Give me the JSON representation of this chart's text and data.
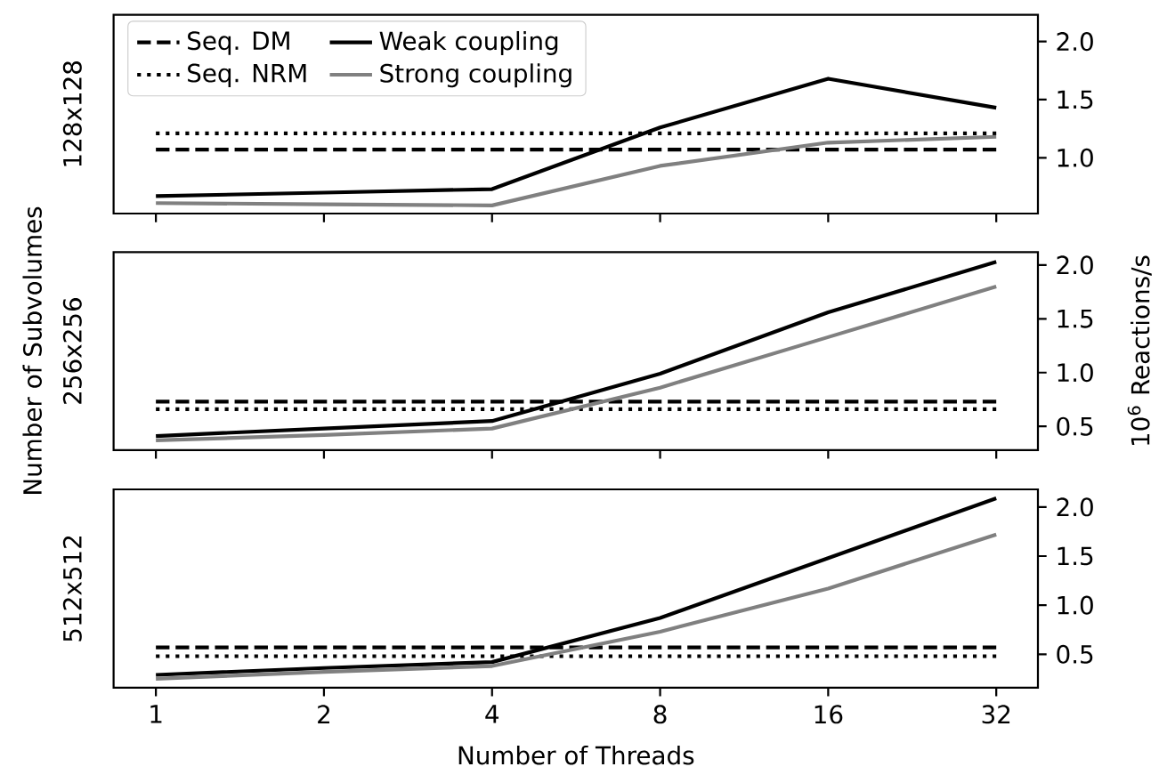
{
  "chart_data": [
    {
      "type": "line",
      "x": [
        1,
        2,
        4,
        8,
        16,
        32
      ],
      "log": "x",
      "xlim": [
        0.84,
        38
      ],
      "xticks": [
        1,
        2,
        4,
        8,
        16,
        32
      ],
      "ylim": [
        0.52,
        2.23
      ],
      "yticks": [
        {
          "value": 1.0,
          "label": "1.0"
        },
        {
          "value": 1.5,
          "label": "1.5"
        },
        {
          "value": 2.0,
          "label": "2.0"
        }
      ],
      "ylabel": "128x128",
      "tick_labels": "y",
      "legend": "top left",
      "series": [
        {
          "name": "Seq. DM",
          "color": "#000000",
          "line_style": "dashed",
          "values": [
            1.07,
            1.07,
            1.07,
            1.07,
            1.07,
            1.07
          ]
        },
        {
          "name": "Seq. NRM",
          "color": "#000000",
          "line_style": "dotted",
          "values": [
            1.21,
            1.21,
            1.21,
            1.21,
            1.21,
            1.21
          ]
        },
        {
          "name": "Weak coupling",
          "color": "#000000",
          "line_style": "solid",
          "values": [
            0.67,
            0.7,
            0.73,
            1.26,
            1.68,
            1.43
          ]
        },
        {
          "name": "Strong coupling",
          "color": "#808080",
          "line_style": "solid",
          "values": [
            0.61,
            0.6,
            0.59,
            0.93,
            1.13,
            1.18
          ]
        }
      ]
    },
    {
      "type": "line",
      "x": [
        1,
        2,
        4,
        8,
        16,
        32
      ],
      "log": "x",
      "xlim": [
        0.84,
        38
      ],
      "xticks": [
        1,
        2,
        4,
        8,
        16,
        32
      ],
      "ylim": [
        0.28,
        2.12
      ],
      "yticks": [
        {
          "value": 0.5,
          "label": "0.5"
        },
        {
          "value": 1.0,
          "label": "1.0"
        },
        {
          "value": 1.5,
          "label": "1.5"
        },
        {
          "value": 2.0,
          "label": "2.0"
        }
      ],
      "ylabel": "256x256",
      "y2label": "10$^{6}$ Reactions/s",
      "annotations": [
        "Number of Subvolumes"
      ],
      "tick_labels": "y",
      "series": [
        {
          "color": "#000000",
          "line_style": "dashed",
          "values": [
            0.73,
            0.73,
            0.73,
            0.73,
            0.73,
            0.73
          ]
        },
        {
          "color": "#000000",
          "line_style": "dotted",
          "values": [
            0.66,
            0.66,
            0.66,
            0.66,
            0.66,
            0.66
          ]
        },
        {
          "color": "#000000",
          "line_style": "solid",
          "values": [
            0.41,
            0.48,
            0.55,
            0.99,
            1.56,
            2.03
          ]
        },
        {
          "color": "#808080",
          "line_style": "solid",
          "values": [
            0.37,
            0.42,
            0.48,
            0.86,
            1.33,
            1.8
          ]
        }
      ]
    },
    {
      "type": "line",
      "x": [
        1,
        2,
        4,
        8,
        16,
        32
      ],
      "log": "x",
      "xlim": [
        0.84,
        38
      ],
      "xticks": [
        1,
        2,
        4,
        8,
        16,
        32
      ],
      "ylim": [
        0.16,
        2.18
      ],
      "yticks": [
        {
          "value": 0.5,
          "label": "0.5"
        },
        {
          "value": 1.0,
          "label": "1.0"
        },
        {
          "value": 1.5,
          "label": "1.5"
        },
        {
          "value": 2.0,
          "label": "2.0"
        }
      ],
      "ylabel": "512x512",
      "xlabel": "Number of Threads",
      "series": [
        {
          "color": "#000000",
          "line_style": "dashed",
          "values": [
            0.57,
            0.57,
            0.57,
            0.57,
            0.57,
            0.57
          ]
        },
        {
          "color": "#000000",
          "line_style": "dotted",
          "values": [
            0.48,
            0.48,
            0.48,
            0.48,
            0.48,
            0.48
          ]
        },
        {
          "color": "#000000",
          "line_style": "solid",
          "values": [
            0.29,
            0.36,
            0.42,
            0.87,
            1.48,
            2.09
          ]
        },
        {
          "color": "#808080",
          "line_style": "solid",
          "values": [
            0.25,
            0.32,
            0.38,
            0.73,
            1.17,
            1.72
          ]
        }
      ]
    }
  ]
}
